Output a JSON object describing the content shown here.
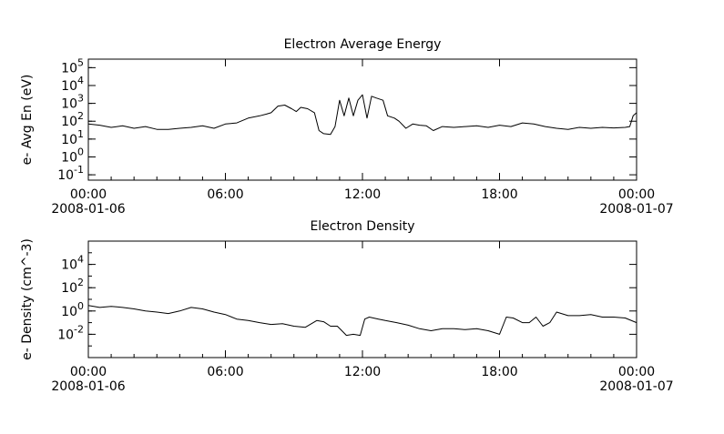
{
  "chart_data": [
    {
      "type": "line",
      "title": "Electron Average Energy",
      "ylabel": "e- Avg En (eV)",
      "xlabel": "",
      "yscale": "log",
      "ylim": [
        0.05,
        300000
      ],
      "y_ticks": [
        {
          "base": "10",
          "exp": "5",
          "value": 100000
        },
        {
          "base": "10",
          "exp": "4",
          "value": 10000
        },
        {
          "base": "10",
          "exp": "3",
          "value": 1000
        },
        {
          "base": "10",
          "exp": "2",
          "value": 100
        },
        {
          "base": "10",
          "exp": "1",
          "value": 10
        },
        {
          "base": "10",
          "exp": "0",
          "value": 1
        },
        {
          "base": "10",
          "exp": "-1",
          "value": 0.1
        }
      ],
      "x_ticks": [
        {
          "label": "00:00",
          "sublabel": "2008-01-06",
          "hour": 0
        },
        {
          "label": "06:00",
          "sublabel": "",
          "hour": 6
        },
        {
          "label": "12:00",
          "sublabel": "",
          "hour": 12
        },
        {
          "label": "18:00",
          "sublabel": "",
          "hour": 18
        },
        {
          "label": "00:00",
          "sublabel": "2008-01-07",
          "hour": 24
        }
      ],
      "xlim_hours": [
        0,
        24
      ],
      "grid": false,
      "series": [
        {
          "x_hours": [
            0,
            0.5,
            1,
            1.5,
            2,
            2.5,
            3,
            3.5,
            4,
            4.5,
            5,
            5.5,
            6,
            6.5,
            7,
            7.5,
            7.8,
            8,
            8.3,
            8.6,
            8.9,
            9.1,
            9.3,
            9.6,
            9.9,
            10.1,
            10.3,
            10.6,
            10.8,
            11,
            11.2,
            11.4,
            11.6,
            11.8,
            12,
            12.2,
            12.4,
            12.6,
            12.9,
            13.1,
            13.4,
            13.6,
            13.9,
            14.2,
            14.5,
            14.8,
            15.1,
            15.5,
            16,
            16.5,
            17,
            17.5,
            18,
            18.5,
            19,
            19.5,
            20,
            20.5,
            21,
            21.5,
            22,
            22.5,
            23,
            23.5,
            23.7,
            23.85,
            24
          ],
          "values": [
            70,
            60,
            45,
            55,
            40,
            50,
            35,
            35,
            40,
            45,
            55,
            40,
            70,
            80,
            150,
            200,
            250,
            300,
            700,
            800,
            500,
            350,
            600,
            500,
            300,
            30,
            20,
            18,
            50,
            1500,
            200,
            2000,
            200,
            1500,
            3000,
            150,
            2500,
            2000,
            1500,
            200,
            150,
            100,
            40,
            70,
            60,
            55,
            30,
            50,
            45,
            50,
            55,
            45,
            60,
            50,
            80,
            70,
            50,
            40,
            35,
            45,
            40,
            45,
            42,
            45,
            50,
            200,
            300
          ]
        }
      ]
    },
    {
      "type": "line",
      "title": "Electron Density",
      "ylabel": "e- Density (cm^-3)",
      "xlabel": "",
      "yscale": "log",
      "ylim": [
        0.0001,
        1000000
      ],
      "y_ticks": [
        {
          "base": "10",
          "exp": "4",
          "value": 10000
        },
        {
          "base": "10",
          "exp": "2",
          "value": 100
        },
        {
          "base": "10",
          "exp": "0",
          "value": 1
        },
        {
          "base": "10",
          "exp": "-2",
          "value": 0.01
        }
      ],
      "x_ticks": [
        {
          "label": "00:00",
          "sublabel": "2008-01-06",
          "hour": 0
        },
        {
          "label": "06:00",
          "sublabel": "",
          "hour": 6
        },
        {
          "label": "12:00",
          "sublabel": "",
          "hour": 12
        },
        {
          "label": "18:00",
          "sublabel": "",
          "hour": 18
        },
        {
          "label": "00:00",
          "sublabel": "2008-01-07",
          "hour": 24
        }
      ],
      "xlim_hours": [
        0,
        24
      ],
      "grid": false,
      "series": [
        {
          "x_hours": [
            0,
            0.5,
            1,
            1.5,
            2,
            2.5,
            3,
            3.5,
            4,
            4.5,
            5,
            5.5,
            6,
            6.5,
            7,
            7.5,
            8,
            8.5,
            9,
            9.5,
            10,
            10.3,
            10.6,
            10.9,
            11.1,
            11.3,
            11.6,
            11.9,
            12.1,
            12.3,
            12.7,
            13,
            13.5,
            14,
            14.5,
            15,
            15.5,
            16,
            16.5,
            17,
            17.5,
            18,
            18.3,
            18.6,
            19,
            19.3,
            19.6,
            19.9,
            20.2,
            20.5,
            21,
            21.5,
            22,
            22.5,
            23,
            23.5,
            24
          ],
          "values": [
            3,
            2,
            2.5,
            2,
            1.5,
            1,
            0.8,
            0.6,
            1,
            2,
            1.5,
            0.8,
            0.5,
            0.2,
            0.15,
            0.1,
            0.07,
            0.08,
            0.05,
            0.04,
            0.15,
            0.12,
            0.05,
            0.05,
            0.02,
            0.008,
            0.01,
            0.008,
            0.2,
            0.3,
            0.2,
            0.15,
            0.1,
            0.06,
            0.03,
            0.02,
            0.03,
            0.03,
            0.025,
            0.03,
            0.02,
            0.01,
            0.3,
            0.25,
            0.1,
            0.1,
            0.3,
            0.05,
            0.1,
            0.8,
            0.4,
            0.4,
            0.5,
            0.3,
            0.3,
            0.25,
            0.1
          ]
        }
      ]
    }
  ]
}
